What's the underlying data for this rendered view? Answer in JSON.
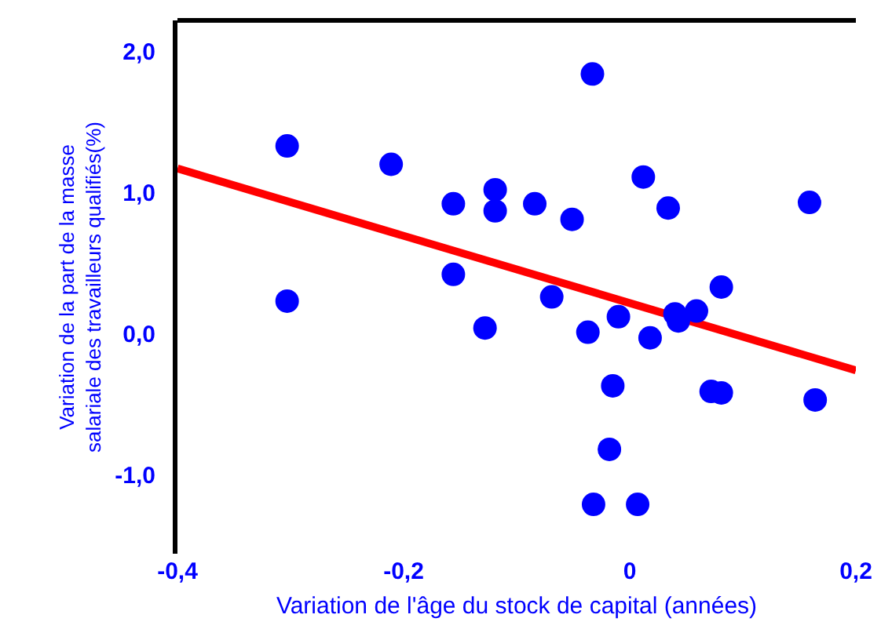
{
  "chart_data": {
    "type": "scatter",
    "xlabel": "Variation de l'âge du stock de capital (années)",
    "ylabel": "Variation de la part de la masse\nsalariale des travailleurs qualifiés(%)",
    "xlim": [
      -0.4,
      0.2
    ],
    "ylim": [
      -1.56,
      2.22
    ],
    "xticks": [
      {
        "value": -0.4,
        "label": "-0,4"
      },
      {
        "value": -0.2,
        "label": "-0,2"
      },
      {
        "value": 0,
        "label": "0"
      },
      {
        "value": 0.2,
        "label": "0,2"
      }
    ],
    "yticks": [
      {
        "value": -1,
        "label": "-1,0"
      },
      {
        "value": 0,
        "label": "0,0"
      },
      {
        "value": 1,
        "label": "1,0"
      },
      {
        "value": 2,
        "label": "2,0"
      }
    ],
    "marker": "circle",
    "series": [
      {
        "type": "scatter",
        "color": "#0000ff",
        "x": [
          -0.303,
          -0.303,
          -0.211,
          -0.156,
          -0.156,
          -0.119,
          -0.119,
          -0.128,
          -0.084,
          -0.051,
          -0.033,
          -0.069,
          -0.037,
          -0.01,
          -0.015,
          -0.018,
          -0.032,
          0.007,
          0.012,
          0.034,
          0.018,
          0.04,
          0.043,
          0.059,
          0.081,
          0.072,
          0.081,
          0.159,
          0.164
        ],
        "values": [
          1.33,
          0.23,
          1.2,
          0.92,
          0.42,
          1.02,
          0.87,
          0.04,
          0.92,
          0.81,
          1.84,
          0.26,
          0.01,
          0.12,
          -0.37,
          -0.82,
          -1.21,
          -1.21,
          1.11,
          0.89,
          -0.03,
          0.14,
          0.09,
          0.16,
          0.33,
          -0.41,
          -0.42,
          0.93,
          -0.47
        ]
      },
      {
        "type": "line",
        "color": "#ff0000",
        "x": [
          -0.4,
          0.2
        ],
        "values": [
          1.17,
          -0.26
        ],
        "marker": "none",
        "line_style": "solid"
      }
    ]
  }
}
